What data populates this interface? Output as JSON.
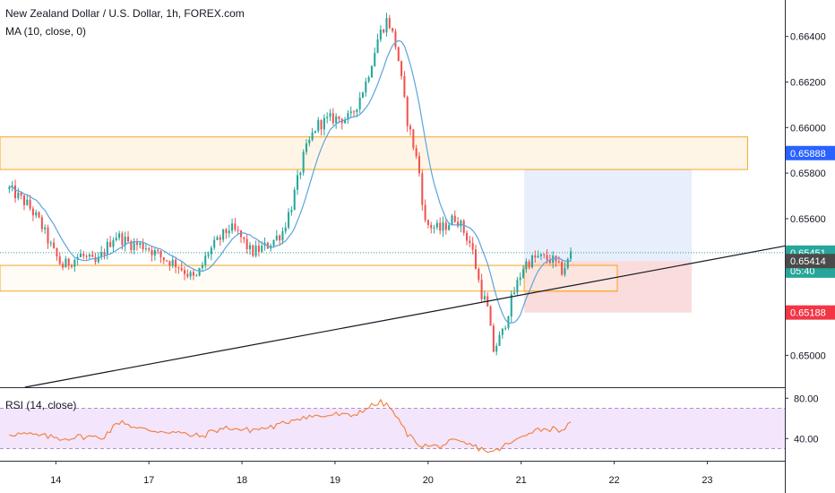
{
  "legend": {
    "title": "New Zealand Dollar / U.S. Dollar, 1h, FOREX.com",
    "ma": "MA (10, close, 0)",
    "rsi": "RSI (14, close)"
  },
  "colors": {
    "up": "#26a69a",
    "down": "#ef5350",
    "ma": "#5ba4dd",
    "zone_border": "#f5a623",
    "zone_fill": "#fff5e6",
    "trendline": "#131722",
    "profit_fill": "#e8eefb",
    "loss_fill": "#fbdcdc",
    "rsi_line": "#f57c3a",
    "rsi_band": "#f3e5fb",
    "current_tag": "#26a69a",
    "tp_tag": "#2962ff",
    "sl_tag": "#f23645",
    "entry_tag": "#4a4a4a"
  },
  "chart_data": [
    {
      "type": "candlestick",
      "title": "New Zealand Dollar / U.S. Dollar, 1h, FOREX.com",
      "x_ticks": [
        "14",
        "17",
        "18",
        "19",
        "20",
        "21",
        "22",
        "23"
      ],
      "x_tick_positions": [
        1.5,
        4.5,
        7.5,
        10.5,
        13.5,
        16.5,
        19.5,
        22.5
      ],
      "xlim": [
        -0.3,
        25.0
      ],
      "ylim": [
        0.6486,
        0.6656
      ],
      "y_ticks": [
        "0.66400",
        "0.66200",
        "0.66000",
        "0.65800",
        "0.65600",
        "0.65400",
        "0.65200",
        "0.65000"
      ],
      "y_tick_values": [
        0.664,
        0.662,
        0.66,
        0.658,
        0.656,
        0.654,
        0.652,
        0.65
      ],
      "grid": false,
      "ohlc_anchors": [
        [
          0.0,
          0.6573
        ],
        [
          0.6,
          0.6566
        ],
        [
          1.0,
          0.6558
        ],
        [
          1.4,
          0.6546
        ],
        [
          1.7,
          0.6539
        ],
        [
          2.3,
          0.6544
        ],
        [
          2.8,
          0.654
        ],
        [
          3.4,
          0.6553
        ],
        [
          3.9,
          0.6549
        ],
        [
          4.4,
          0.6548
        ],
        [
          4.9,
          0.6543
        ],
        [
          5.4,
          0.654
        ],
        [
          6.0,
          0.6533
        ],
        [
          6.4,
          0.6545
        ],
        [
          7.1,
          0.6556
        ],
        [
          7.4,
          0.6553
        ],
        [
          7.8,
          0.6545
        ],
        [
          8.3,
          0.6548
        ],
        [
          8.8,
          0.6554
        ],
        [
          9.1,
          0.6566
        ],
        [
          9.5,
          0.6588
        ],
        [
          9.9,
          0.6601
        ],
        [
          10.4,
          0.6604
        ],
        [
          11.0,
          0.6604
        ],
        [
          11.5,
          0.662
        ],
        [
          11.9,
          0.664
        ],
        [
          12.2,
          0.6648
        ],
        [
          12.5,
          0.6634
        ],
        [
          12.8,
          0.6605
        ],
        [
          13.2,
          0.6582
        ],
        [
          13.4,
          0.6558
        ],
        [
          13.9,
          0.6555
        ],
        [
          14.4,
          0.6561
        ],
        [
          14.9,
          0.6548
        ],
        [
          15.2,
          0.6528
        ],
        [
          15.4,
          0.6522
        ],
        [
          15.6,
          0.6502
        ],
        [
          15.9,
          0.651
        ],
        [
          16.2,
          0.6525
        ],
        [
          16.6,
          0.654
        ],
        [
          17.0,
          0.6543
        ],
        [
          17.5,
          0.6542
        ],
        [
          17.8,
          0.6537
        ],
        [
          18.0,
          0.6541
        ],
        [
          18.1,
          0.6545
        ]
      ],
      "ma_label": "MA (10, close, 0)",
      "zones": [
        {
          "x1": -0.3,
          "x2": 23.8,
          "y1": 0.65959,
          "y2": 0.65816
        },
        {
          "x1": -0.3,
          "x2": 19.6,
          "y1": 0.65395,
          "y2": 0.65282
        }
      ],
      "trendline": {
        "x1": 0.5,
        "y1": 0.6486,
        "x2": 25.0,
        "y2": 0.6548
      },
      "current_price_line": 0.65451,
      "position": {
        "x1": 16.6,
        "x2": 22.0,
        "entry": 0.65414,
        "target": 0.65888,
        "stop": 0.65188
      },
      "price_tags": [
        {
          "value": 0.65888,
          "label": "0.65888",
          "kind": "tp"
        },
        {
          "value": 0.65451,
          "label": "0.65451",
          "kind": "current"
        },
        {
          "value": 0.65372,
          "label": "05:40",
          "kind": "current"
        },
        {
          "value": 0.65414,
          "label": "0.65414",
          "kind": "entry"
        },
        {
          "value": 0.65188,
          "label": "0.65188",
          "kind": "sl"
        }
      ]
    },
    {
      "type": "line",
      "title": "RSI (14, close)",
      "ylim": [
        18,
        90
      ],
      "y_ticks": [
        "80.00",
        "40.00"
      ],
      "y_tick_values": [
        80,
        40
      ],
      "band": [
        30,
        70
      ],
      "rsi_anchors": [
        [
          0.0,
          45
        ],
        [
          0.6,
          44
        ],
        [
          1.2,
          42
        ],
        [
          1.7,
          40
        ],
        [
          2.3,
          42
        ],
        [
          3.0,
          41
        ],
        [
          3.6,
          58
        ],
        [
          4.1,
          50
        ],
        [
          4.6,
          48
        ],
        [
          5.2,
          47
        ],
        [
          5.7,
          44
        ],
        [
          6.2,
          42
        ],
        [
          6.6,
          48
        ],
        [
          7.1,
          51
        ],
        [
          7.6,
          48
        ],
        [
          8.2,
          50
        ],
        [
          8.7,
          53
        ],
        [
          9.2,
          60
        ],
        [
          9.6,
          62
        ],
        [
          10.1,
          62
        ],
        [
          10.5,
          64
        ],
        [
          11.0,
          62
        ],
        [
          11.5,
          70
        ],
        [
          12.0,
          76
        ],
        [
          12.3,
          70
        ],
        [
          12.6,
          55
        ],
        [
          12.9,
          42
        ],
        [
          13.3,
          33
        ],
        [
          13.8,
          32
        ],
        [
          14.3,
          37
        ],
        [
          14.8,
          34
        ],
        [
          15.2,
          30
        ],
        [
          15.6,
          26
        ],
        [
          15.9,
          32
        ],
        [
          16.3,
          37
        ],
        [
          16.8,
          48
        ],
        [
          17.3,
          50
        ],
        [
          17.8,
          49
        ],
        [
          18.1,
          54
        ]
      ]
    }
  ]
}
